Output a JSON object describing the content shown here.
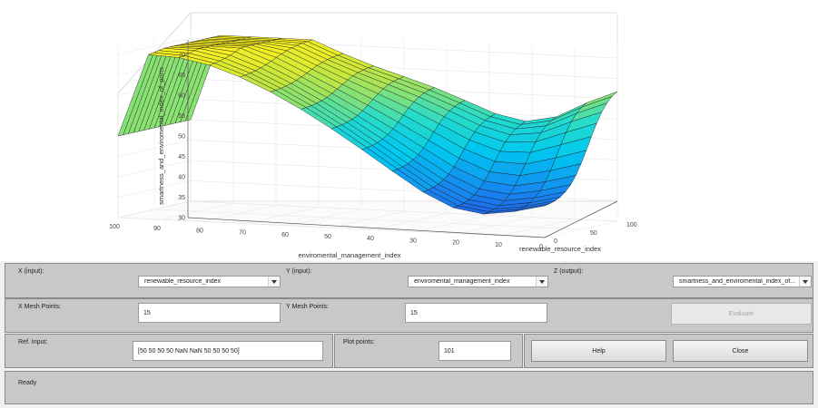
{
  "plot": {
    "zlabel": "smartness_and_enviromental_index_of_ports",
    "xlabel": "enviromental_management_index",
    "ylabel": "renewable_resource_index",
    "z_ticks": [
      "30",
      "35",
      "40",
      "45",
      "50",
      "55",
      "60",
      "65",
      "70"
    ],
    "x_ticks": [
      "100",
      "90",
      "80",
      "70",
      "60",
      "50",
      "40",
      "30",
      "20",
      "10",
      "0"
    ],
    "y_ticks": [
      "0",
      "50",
      "100"
    ]
  },
  "controls": {
    "x_input_label": "X (input):",
    "x_input_value": "renewable_resource_index",
    "y_input_label": "Y (input):",
    "y_input_value": "enviromental_management_index",
    "z_output_label": "Z (output):",
    "z_output_value": "smartness_and_enviromental_index_of...",
    "x_mesh_label": "X Mesh Points:",
    "x_mesh_value": "15",
    "y_mesh_label": "Y Mesh Points:",
    "y_mesh_value": "15",
    "evaluate_label": "Evaluate",
    "ref_input_label": "Ref. Input:",
    "ref_input_value": "[50 50 50 50 NaN NaN 50 50 50 50]",
    "plot_points_label": "Plot points:",
    "plot_points_value": "101",
    "help_label": "Help",
    "close_label": "Close",
    "status": "Ready"
  }
}
